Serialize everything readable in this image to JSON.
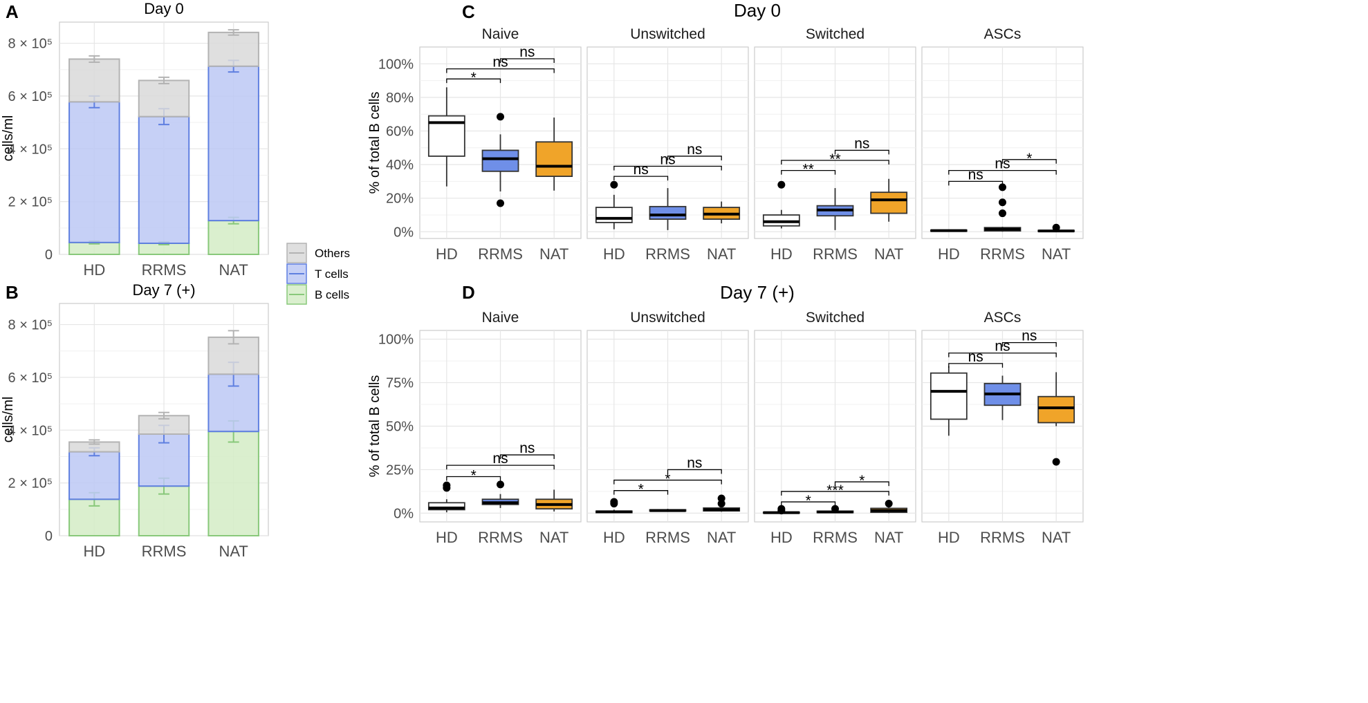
{
  "colors": {
    "others": "#d9d9d9",
    "others_stroke": "#b3b3b3",
    "tcells": "#bcc8f5",
    "tcells_stroke": "#5f7fe0",
    "bcells": "#d4ecc6",
    "bcells_stroke": "#88c87a",
    "HD": "#ffffff",
    "RRMS": "#6f8fe8",
    "NAT": "#f0a429"
  },
  "legend": {
    "items": [
      "Others",
      "T cells",
      "B cells"
    ]
  },
  "chart_data": [
    {
      "panel": "A",
      "type": "bar",
      "stacked": true,
      "title": "Day 0",
      "ylabel": "cells/ml",
      "categories": [
        "HD",
        "RRMS",
        "NAT"
      ],
      "ylim": [
        0,
        880000
      ],
      "yticks": [
        0,
        200000,
        400000,
        600000,
        800000
      ],
      "ytick_labels": [
        "0",
        "2 × 10⁵",
        "4 × 10⁵",
        "6 × 10⁵",
        "8 × 10⁵"
      ],
      "series": [
        {
          "name": "B cells",
          "values": [
            45000,
            42000,
            128000
          ],
          "errors": [
            5000,
            5000,
            12000
          ]
        },
        {
          "name": "T cells",
          "values": [
            533000,
            480000,
            585000
          ],
          "errors": [
            22000,
            30000,
            22000
          ]
        },
        {
          "name": "Others",
          "values": [
            162000,
            137000,
            128000
          ],
          "errors": [
            12000,
            12000,
            10000
          ]
        }
      ]
    },
    {
      "panel": "B",
      "type": "bar",
      "stacked": true,
      "title": "Day 7 (+)",
      "ylabel": "cells/ml",
      "categories": [
        "HD",
        "RRMS",
        "NAT"
      ],
      "ylim": [
        0,
        880000
      ],
      "yticks": [
        0,
        200000,
        400000,
        600000,
        800000
      ],
      "ytick_labels": [
        "0",
        "2 × 10⁵",
        "4 × 10⁵",
        "6 × 10⁵",
        "8 × 10⁵"
      ],
      "series": [
        {
          "name": "B cells",
          "values": [
            138000,
            188000,
            395000
          ],
          "errors": [
            25000,
            30000,
            40000
          ]
        },
        {
          "name": "T cells",
          "values": [
            180000,
            197000,
            217000
          ],
          "errors": [
            15000,
            33000,
            45000
          ]
        },
        {
          "name": "Others",
          "values": [
            37000,
            70000,
            140000
          ],
          "errors": [
            8000,
            12000,
            25000
          ]
        }
      ]
    },
    {
      "panel": "C",
      "type": "boxplot",
      "title": "Day 0",
      "ylabel": "% of total B cells",
      "categories": [
        "HD",
        "RRMS",
        "NAT"
      ],
      "ylim": [
        -4,
        110
      ],
      "yticks": [
        0,
        20,
        40,
        60,
        80,
        100
      ],
      "ytick_labels": [
        "0%",
        "20%",
        "40%",
        "60%",
        "80%",
        "100%"
      ],
      "facets": [
        {
          "name": "Naive",
          "boxes": [
            {
              "group": "HD",
              "q1": 45,
              "median": 65,
              "q3": 69,
              "lo": 27,
              "hi": 86,
              "outliers": []
            },
            {
              "group": "RRMS",
              "q1": 36,
              "median": 43.5,
              "q3": 48.5,
              "lo": 24,
              "hi": 58,
              "outliers": [
                17,
                68.5
              ]
            },
            {
              "group": "NAT",
              "q1": 33,
              "median": 39,
              "q3": 53.5,
              "lo": 24.5,
              "hi": 68,
              "outliers": []
            }
          ],
          "sig": [
            {
              "a": 0,
              "b": 1,
              "label": "*",
              "y": 91
            },
            {
              "a": 0,
              "b": 2,
              "label": "ns",
              "y": 97
            },
            {
              "a": 1,
              "b": 2,
              "label": "ns",
              "y": 103
            }
          ]
        },
        {
          "name": "Unswitched",
          "boxes": [
            {
              "group": "HD",
              "q1": 5.5,
              "median": 8,
              "q3": 14.5,
              "lo": 1.5,
              "hi": 22,
              "outliers": [
                28
              ]
            },
            {
              "group": "RRMS",
              "q1": 7.5,
              "median": 10,
              "q3": 15,
              "lo": 1,
              "hi": 26,
              "outliers": []
            },
            {
              "group": "NAT",
              "q1": 7.5,
              "median": 10.5,
              "q3": 14.5,
              "lo": 5,
              "hi": 18,
              "outliers": []
            }
          ],
          "sig": [
            {
              "a": 0,
              "b": 1,
              "label": "ns",
              "y": 33
            },
            {
              "a": 0,
              "b": 2,
              "label": "ns",
              "y": 39
            },
            {
              "a": 1,
              "b": 2,
              "label": "ns",
              "y": 45
            }
          ]
        },
        {
          "name": "Switched",
          "boxes": [
            {
              "group": "HD",
              "q1": 3.5,
              "median": 6,
              "q3": 10,
              "lo": 2,
              "hi": 13,
              "outliers": [
                28
              ]
            },
            {
              "group": "RRMS",
              "q1": 9.5,
              "median": 13,
              "q3": 15.5,
              "lo": 1,
              "hi": 26,
              "outliers": []
            },
            {
              "group": "NAT",
              "q1": 11,
              "median": 19,
              "q3": 23.5,
              "lo": 6,
              "hi": 31.5,
              "outliers": []
            }
          ],
          "sig": [
            {
              "a": 0,
              "b": 1,
              "label": "**",
              "y": 36.5
            },
            {
              "a": 0,
              "b": 2,
              "label": "**",
              "y": 42.5
            },
            {
              "a": 1,
              "b": 2,
              "label": "ns",
              "y": 48.5
            }
          ]
        },
        {
          "name": "ASCs",
          "boxes": [
            {
              "group": "HD",
              "q1": 0.3,
              "median": 0.7,
              "q3": 1,
              "lo": 0,
              "hi": 1.2,
              "outliers": []
            },
            {
              "group": "RRMS",
              "q1": 0.5,
              "median": 1.5,
              "q3": 2.5,
              "lo": 0,
              "hi": 3,
              "outliers": [
                11,
                17.5,
                26.5
              ]
            },
            {
              "group": "NAT",
              "q1": 0.2,
              "median": 0.5,
              "q3": 0.8,
              "lo": 0,
              "hi": 1.2,
              "outliers": [
                2.5
              ]
            }
          ],
          "sig": [
            {
              "a": 0,
              "b": 1,
              "label": "ns",
              "y": 30
            },
            {
              "a": 0,
              "b": 2,
              "label": "ns",
              "y": 36.5
            },
            {
              "a": 1,
              "b": 2,
              "label": "*",
              "y": 43
            }
          ]
        }
      ]
    },
    {
      "panel": "D",
      "type": "boxplot",
      "title": "Day 7 (+)",
      "ylabel": "% of total B cells",
      "categories": [
        "HD",
        "RRMS",
        "NAT"
      ],
      "ylim": [
        -5,
        105
      ],
      "yticks": [
        0,
        25,
        50,
        75,
        100
      ],
      "ytick_labels": [
        "0%",
        "25%",
        "50%",
        "75%",
        "100%"
      ],
      "facets": [
        {
          "name": "Naive",
          "boxes": [
            {
              "group": "HD",
              "q1": 2,
              "median": 3,
              "q3": 6,
              "lo": 0.5,
              "hi": 8,
              "outliers": [
                14.5,
                16
              ]
            },
            {
              "group": "RRMS",
              "q1": 5,
              "median": 6,
              "q3": 8,
              "lo": 3,
              "hi": 11,
              "outliers": [
                16.5
              ]
            },
            {
              "group": "NAT",
              "q1": 2.5,
              "median": 5,
              "q3": 8,
              "lo": 1,
              "hi": 13.5,
              "outliers": []
            }
          ],
          "sig": [
            {
              "a": 0,
              "b": 1,
              "label": "*",
              "y": 21
            },
            {
              "a": 0,
              "b": 2,
              "label": "ns",
              "y": 27.5
            },
            {
              "a": 1,
              "b": 2,
              "label": "ns",
              "y": 33.5
            }
          ]
        },
        {
          "name": "Unswitched",
          "boxes": [
            {
              "group": "HD",
              "q1": 0.3,
              "median": 0.8,
              "q3": 1.2,
              "lo": 0,
              "hi": 2,
              "outliers": [
                5.5,
                6.5
              ]
            },
            {
              "group": "RRMS",
              "q1": 1.2,
              "median": 1.5,
              "q3": 2,
              "lo": 0.8,
              "hi": 2.5,
              "outliers": []
            },
            {
              "group": "NAT",
              "q1": 1.3,
              "median": 2,
              "q3": 3,
              "lo": 0.8,
              "hi": 4,
              "outliers": [
                5.5,
                8.5
              ]
            }
          ],
          "sig": [
            {
              "a": 0,
              "b": 1,
              "label": "*",
              "y": 13
            },
            {
              "a": 0,
              "b": 2,
              "label": "*",
              "y": 19
            },
            {
              "a": 1,
              "b": 2,
              "label": "ns",
              "y": 25
            }
          ]
        },
        {
          "name": "Switched",
          "boxes": [
            {
              "group": "HD",
              "q1": 0,
              "median": 0.3,
              "q3": 0.6,
              "lo": 0,
              "hi": 1,
              "outliers": [
                1.5,
                2.5
              ]
            },
            {
              "group": "RRMS",
              "q1": 0.3,
              "median": 0.7,
              "q3": 1.2,
              "lo": 0,
              "hi": 1.8,
              "outliers": [
                2.5
              ]
            },
            {
              "group": "NAT",
              "q1": 0.5,
              "median": 1.5,
              "q3": 2.8,
              "lo": 0,
              "hi": 4,
              "outliers": [
                5.5
              ]
            }
          ],
          "sig": [
            {
              "a": 0,
              "b": 1,
              "label": "*",
              "y": 6.5
            },
            {
              "a": 0,
              "b": 2,
              "label": "***",
              "y": 12.5
            },
            {
              "a": 1,
              "b": 2,
              "label": "*",
              "y": 18
            }
          ]
        },
        {
          "name": "ASCs",
          "boxes": [
            {
              "group": "HD",
              "q1": 54,
              "median": 70,
              "q3": 80.5,
              "lo": 44.5,
              "hi": 84.5,
              "outliers": []
            },
            {
              "group": "RRMS",
              "q1": 62,
              "median": 68.5,
              "q3": 74.5,
              "lo": 53.5,
              "hi": 79,
              "outliers": []
            },
            {
              "group": "NAT",
              "q1": 52,
              "median": 60.5,
              "q3": 67,
              "lo": 50,
              "hi": 81,
              "outliers": [
                29.5
              ]
            }
          ],
          "sig": [
            {
              "a": 0,
              "b": 1,
              "label": "ns",
              "y": 86
            },
            {
              "a": 0,
              "b": 2,
              "label": "ns",
              "y": 92
            },
            {
              "a": 1,
              "b": 2,
              "label": "ns",
              "y": 98
            }
          ]
        }
      ]
    }
  ]
}
